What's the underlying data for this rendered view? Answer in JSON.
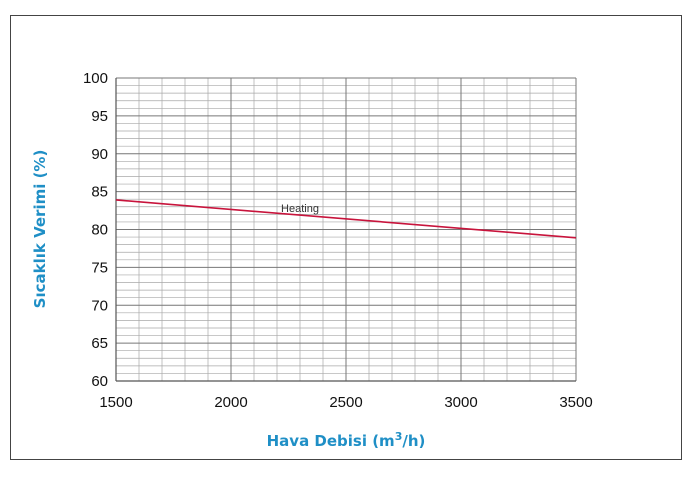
{
  "chart_data": {
    "type": "line",
    "title": "",
    "xlabel_main": "Hava Debisi  (m",
    "xlabel_sup": "3",
    "xlabel_end": "/h)",
    "ylabel": "Sıcaklık Verimi (%)",
    "xlim": [
      1500,
      3500
    ],
    "ylim": [
      60,
      100
    ],
    "x_ticks": [
      1500,
      2000,
      2500,
      3000,
      3500
    ],
    "y_ticks": [
      60,
      65,
      70,
      75,
      80,
      85,
      90,
      95,
      100
    ],
    "grid": true,
    "series": [
      {
        "name": "Heating",
        "color": "#c8143c",
        "x": [
          1500,
          3500
        ],
        "y": [
          83.9,
          78.9
        ]
      }
    ]
  }
}
